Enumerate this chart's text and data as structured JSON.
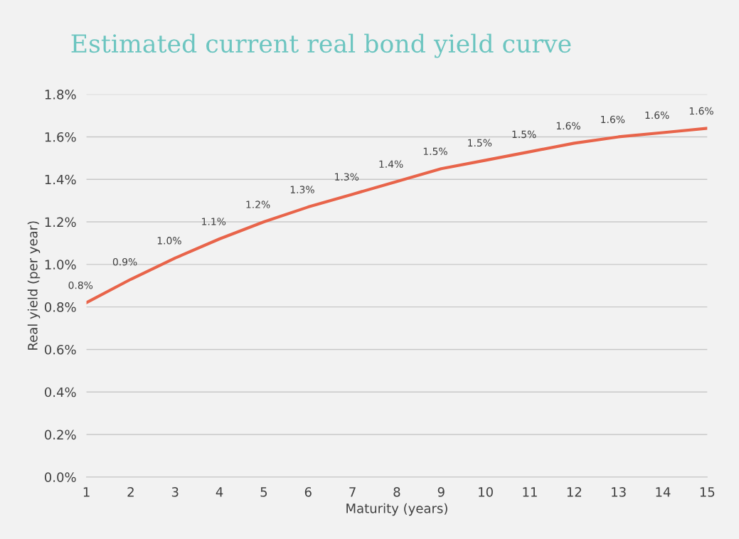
{
  "chart_data": {
    "type": "line",
    "title": "Estimated current real bond yield curve",
    "xlabel": "Maturity (years)",
    "ylabel": "Real yield (per year)",
    "x": [
      1,
      2,
      3,
      4,
      5,
      6,
      7,
      8,
      9,
      10,
      11,
      12,
      13,
      14,
      15
    ],
    "series": [
      {
        "color": "#e8644a",
        "values": [
          0.82,
          0.93,
          1.03,
          1.12,
          1.2,
          1.27,
          1.33,
          1.39,
          1.45,
          1.49,
          1.53,
          1.57,
          1.6,
          1.62,
          1.64
        ],
        "value_labels": [
          "0.8%",
          "0.9%",
          "1.0%",
          "1.1%",
          "1.2%",
          "1.3%",
          "1.3%",
          "1.4%",
          "1.5%",
          "1.5%",
          "1.5%",
          "1.6%",
          "1.6%",
          "1.6%",
          "1.6%"
        ]
      }
    ],
    "xlim": [
      1,
      15
    ],
    "xticks": [
      1,
      2,
      3,
      4,
      5,
      6,
      7,
      8,
      9,
      10,
      11,
      12,
      13,
      14,
      15
    ],
    "ylim": [
      0,
      1.8
    ],
    "yticks": [
      {
        "value": 0,
        "label": "0.0%"
      },
      {
        "value": 0.2,
        "label": "0.2%"
      },
      {
        "value": 0.4,
        "label": "0.4%"
      },
      {
        "value": 0.6,
        "label": "0.6%"
      },
      {
        "value": 0.8,
        "label": "0.8%"
      },
      {
        "value": 1.0,
        "label": "1.0%"
      },
      {
        "value": 1.2,
        "label": "1.2%"
      },
      {
        "value": 1.4,
        "label": "1.4%"
      },
      {
        "value": 1.6,
        "label": "1.6%"
      },
      {
        "value": 1.8,
        "label": "1.8%"
      }
    ],
    "grid": "y",
    "marker": "none",
    "line_style": "solid"
  }
}
